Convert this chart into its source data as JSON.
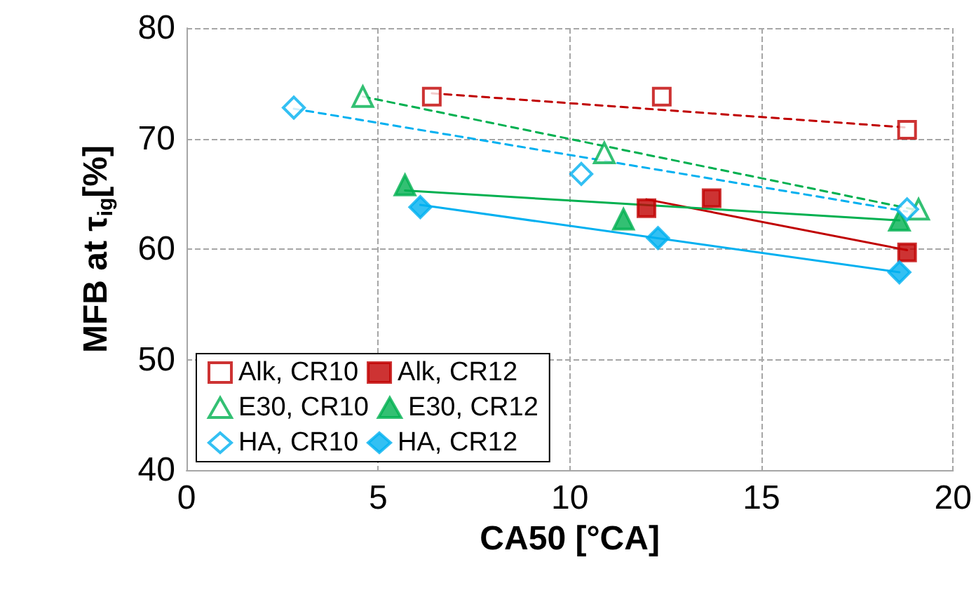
{
  "chart_data": {
    "type": "scatter",
    "xlabel": "CA50 [°CA]",
    "ylabel": "MFB at τ$_{ig}$[%]",
    "xlim": [
      0,
      20
    ],
    "xticks": [
      0,
      5,
      10,
      15,
      20
    ],
    "ylim": [
      40,
      80
    ],
    "yticks": [
      40,
      50,
      60,
      70,
      80
    ],
    "grid": true,
    "legend": "bottom left",
    "series": [
      {
        "name": "Alk, CR10",
        "color": "#c00000",
        "marker": "square",
        "line_style": "dashed",
        "x": [
          6.4,
          12.4,
          18.8
        ],
        "values": [
          73.8,
          73.8,
          70.8
        ]
      },
      {
        "name": "Alk, CR12",
        "color": "#c00000",
        "marker": "square",
        "line_style": "solid",
        "x": [
          12.0,
          13.7,
          18.8
        ],
        "values": [
          63.7,
          64.6,
          59.7
        ]
      },
      {
        "name": "E30, CR10",
        "color": "#00b050",
        "marker": "triangle",
        "line_style": "dashed",
        "x": [
          4.6,
          10.9,
          19.1
        ],
        "values": [
          73.8,
          68.7,
          63.6
        ]
      },
      {
        "name": "E30, CR12",
        "color": "#00b050",
        "marker": "triangle",
        "line_style": "solid",
        "x": [
          5.7,
          11.4,
          18.6
        ],
        "values": [
          65.8,
          62.7,
          62.6
        ]
      },
      {
        "name": "HA, CR10",
        "color": "#00b0f0",
        "marker": "diamond",
        "line_style": "dashed",
        "x": [
          2.8,
          10.3,
          18.8
        ],
        "values": [
          72.8,
          66.8,
          63.6
        ]
      },
      {
        "name": "HA, CR12",
        "color": "#00b0f0",
        "marker": "diamond",
        "line_style": "solid",
        "x": [
          6.1,
          12.3,
          18.6
        ],
        "values": [
          63.8,
          61.0,
          57.9
        ]
      },
      {
        "type": "line",
        "color": "#c00000",
        "line_style": "dashed",
        "marker": "none",
        "x": [
          6.4,
          18.8
        ],
        "values": [
          74.1,
          71.0
        ]
      },
      {
        "type": "line",
        "color": "#c00000",
        "line_style": "solid",
        "marker": "none",
        "x": [
          12.0,
          18.8
        ],
        "values": [
          64.5,
          59.9
        ]
      },
      {
        "type": "line",
        "color": "#00b050",
        "line_style": "dashed",
        "marker": "none",
        "x": [
          4.6,
          19.1
        ],
        "values": [
          73.8,
          63.5
        ]
      },
      {
        "type": "line",
        "color": "#00b050",
        "line_style": "solid",
        "marker": "none",
        "x": [
          5.7,
          18.6
        ],
        "values": [
          65.3,
          62.6
        ]
      },
      {
        "type": "line",
        "color": "#00b0f0",
        "line_style": "dashed",
        "marker": "none",
        "x": [
          2.8,
          18.8
        ],
        "values": [
          72.7,
          63.4
        ]
      },
      {
        "type": "line",
        "color": "#00b0f0",
        "line_style": "solid",
        "marker": "none",
        "x": [
          6.1,
          18.6
        ],
        "values": [
          64.0,
          57.9
        ]
      }
    ]
  }
}
